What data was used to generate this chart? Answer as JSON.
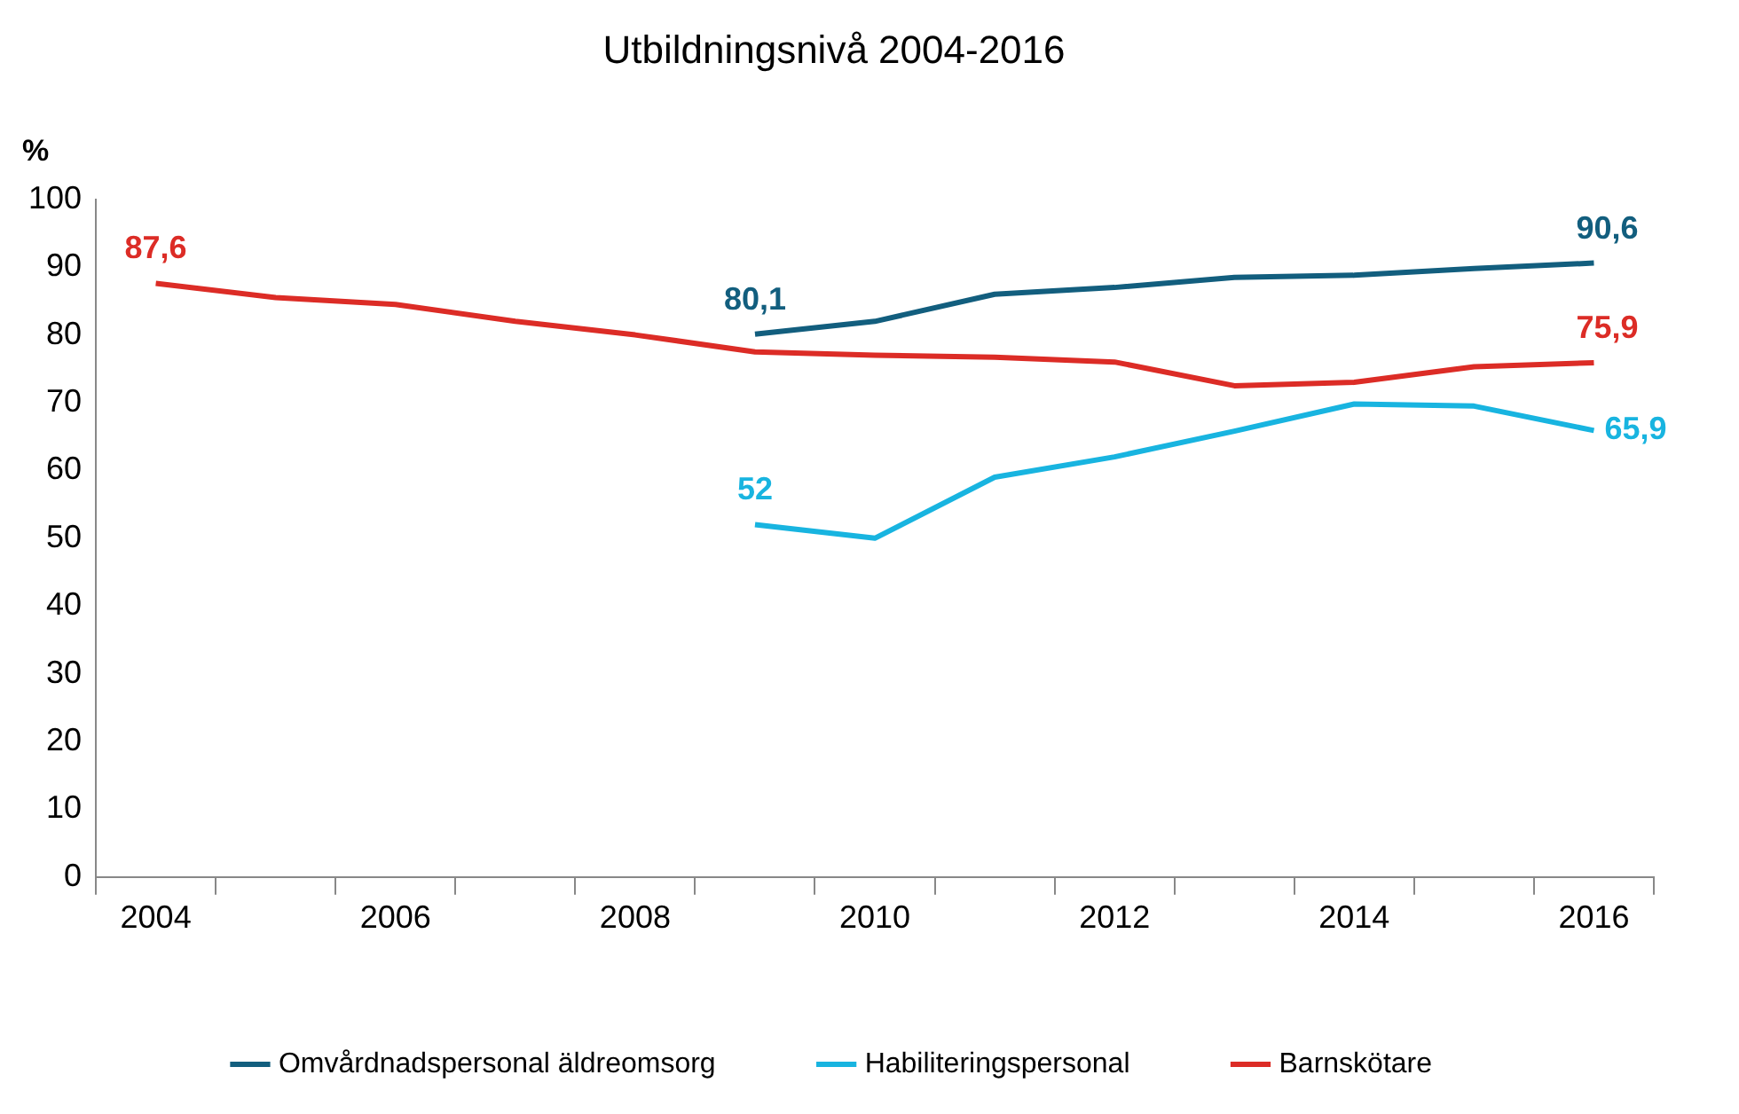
{
  "chart_data": {
    "type": "line",
    "title": "Utbildningsnivå 2004-2016",
    "ylabel": "%",
    "categories": [
      "2004",
      null,
      "2006",
      null,
      "2008",
      null,
      "2010",
      null,
      "2012",
      null,
      "2014",
      null,
      "2016"
    ],
    "series": [
      {
        "name": "Omvårdnadspersonal äldreomsorg",
        "color": "#125e7e",
        "values": [
          null,
          null,
          null,
          null,
          null,
          80.1,
          82,
          86,
          87,
          88.5,
          88.8,
          89.8,
          90.6
        ],
        "value_labels": [
          null,
          null,
          null,
          null,
          null,
          "80,1",
          null,
          null,
          null,
          null,
          null,
          null,
          "90,6"
        ]
      },
      {
        "name": "Habiliteringspersonal",
        "color": "#18b4e0",
        "values": [
          null,
          null,
          null,
          null,
          null,
          52,
          50,
          59,
          62,
          65.8,
          69.8,
          69.5,
          65.9
        ],
        "value_labels": [
          null,
          null,
          null,
          null,
          null,
          "52",
          null,
          null,
          null,
          null,
          null,
          null,
          "65,9"
        ]
      },
      {
        "name": "Barnskötare",
        "color": "#dc2c26",
        "values": [
          87.6,
          85.5,
          84.5,
          82,
          80,
          77.5,
          77,
          76.7,
          76,
          72.5,
          73,
          75.3,
          75.9
        ],
        "value_labels": [
          "87,6",
          null,
          null,
          null,
          null,
          null,
          null,
          null,
          null,
          null,
          null,
          null,
          "75,9"
        ]
      }
    ],
    "ylim": [
      0,
      100
    ],
    "yticks": [
      0,
      10,
      20,
      30,
      40,
      50,
      60,
      70,
      80,
      90,
      100
    ],
    "grid": false,
    "legend": "bottom",
    "marker": "none",
    "line_style": "solid"
  }
}
